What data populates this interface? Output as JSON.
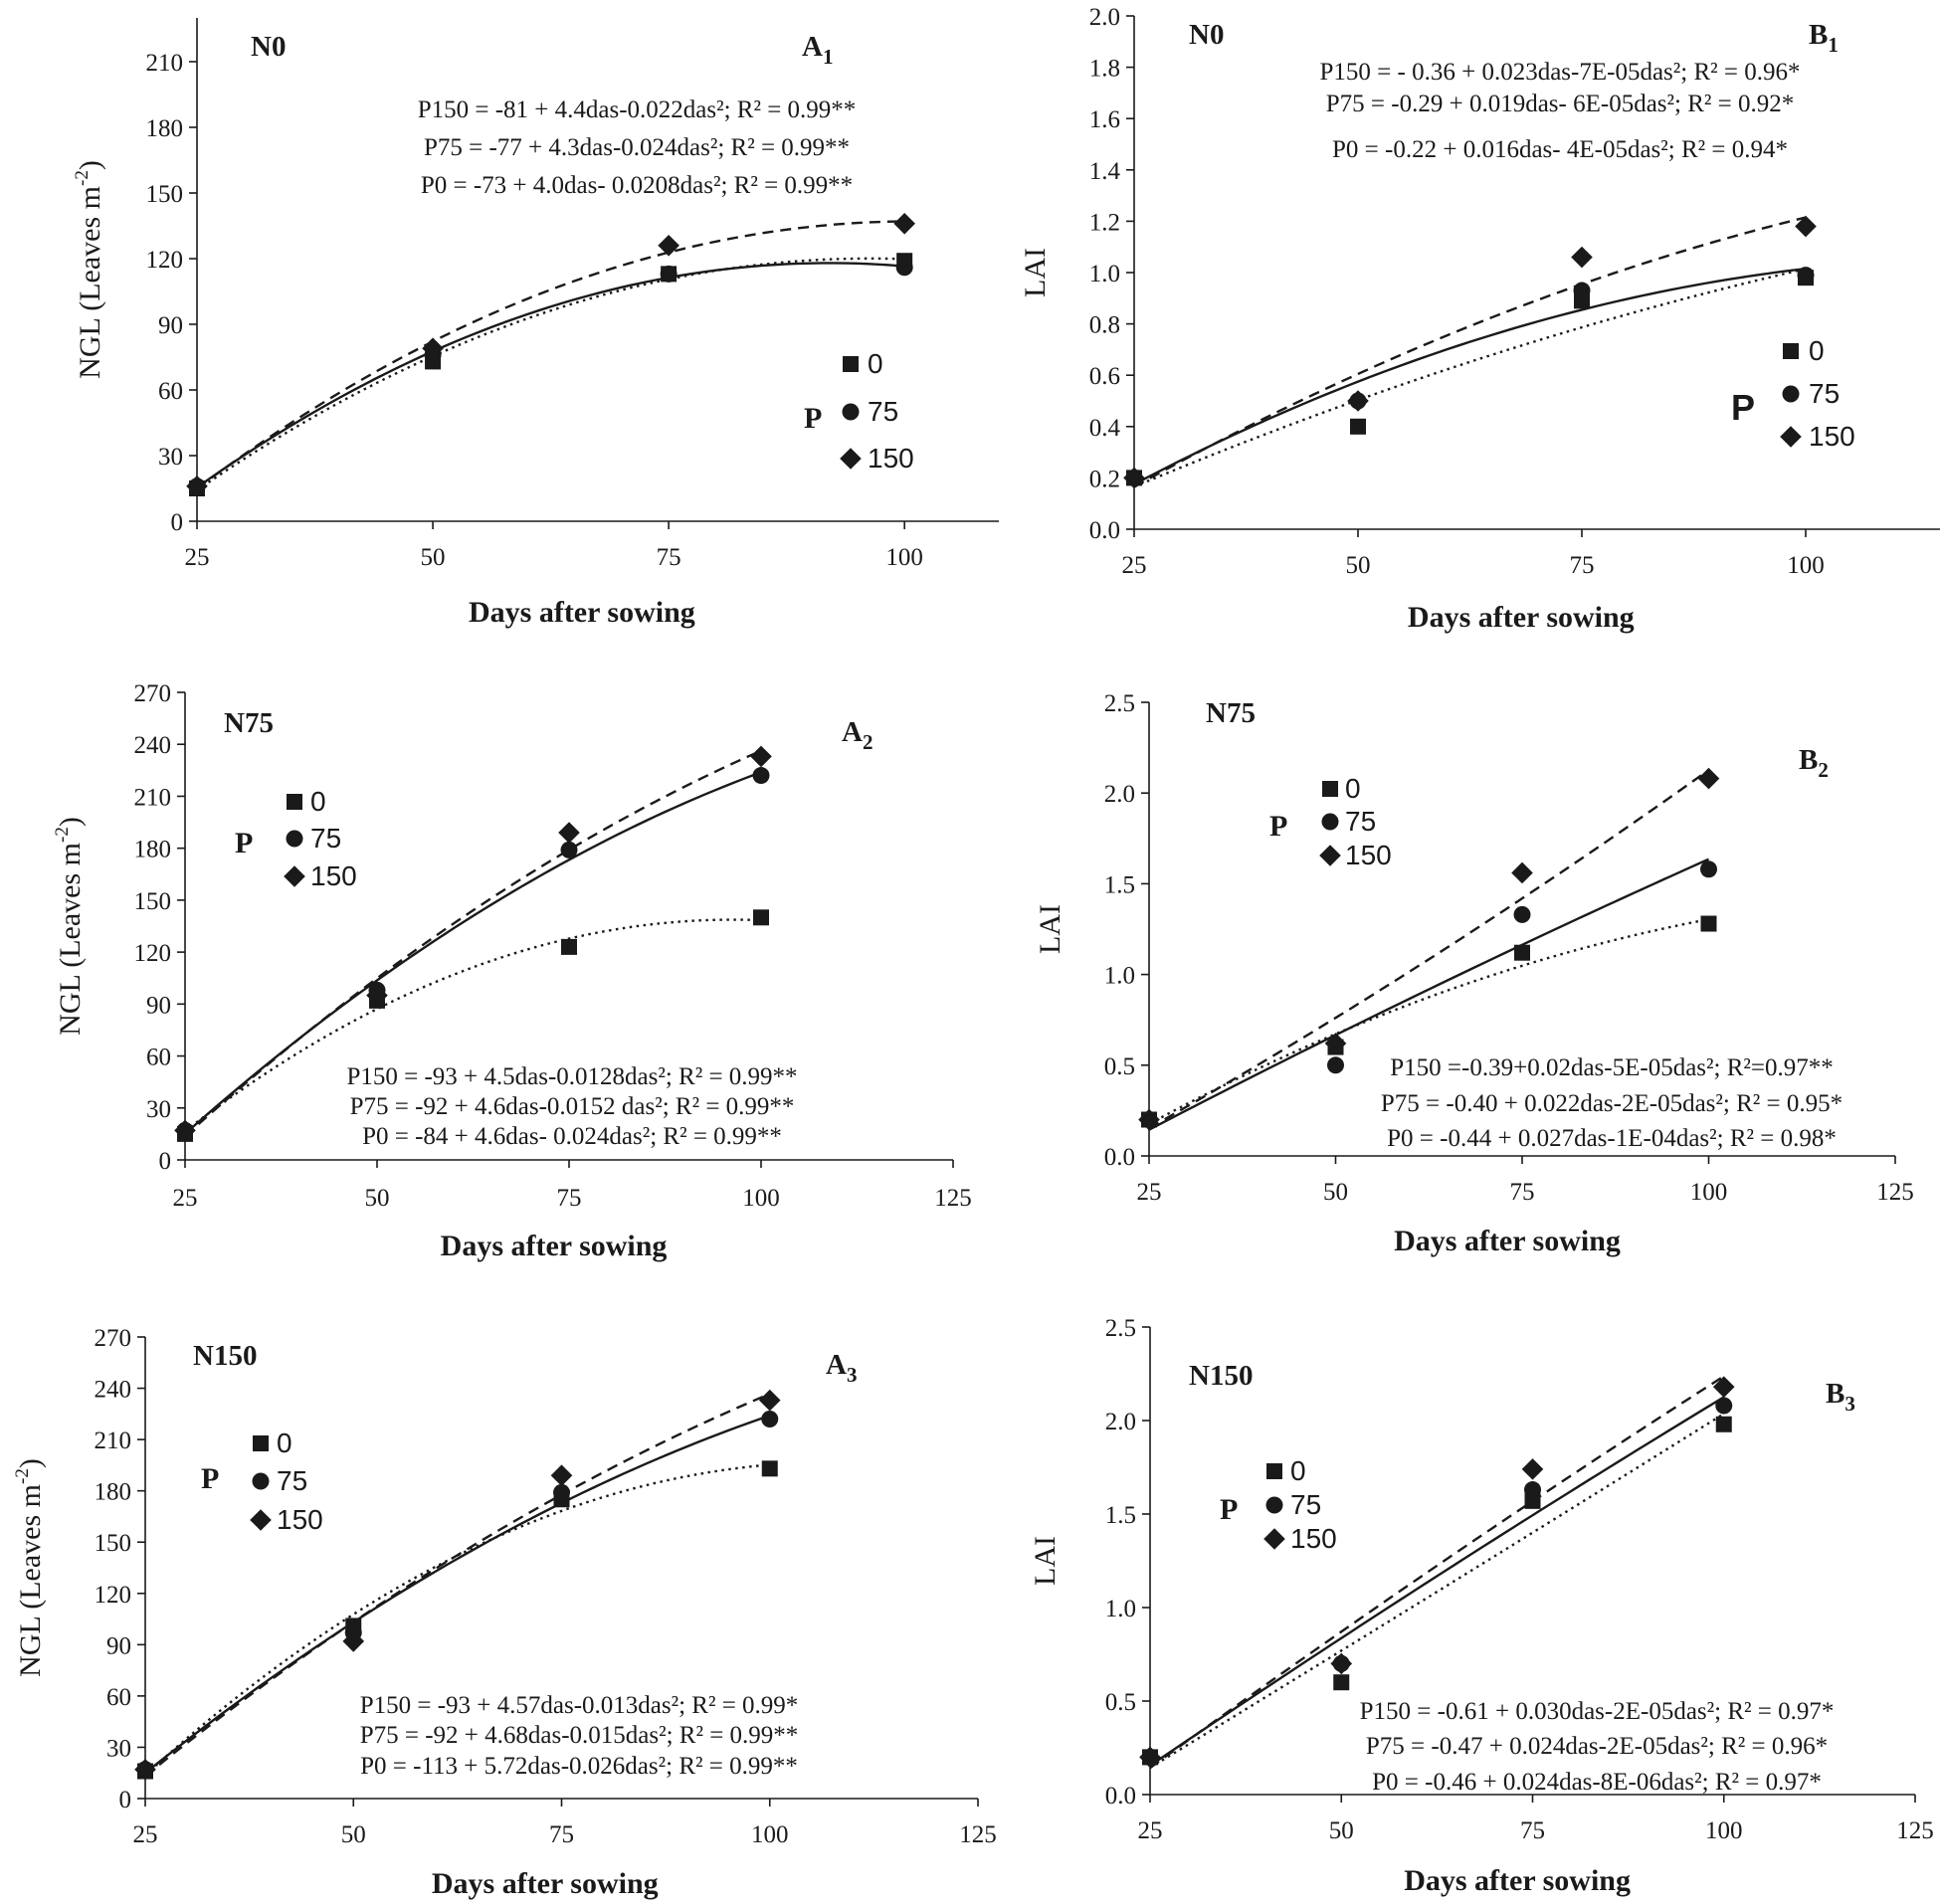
{
  "chart_data": [
    {
      "type": "scatter",
      "panel_label": "A",
      "panel_subscript": "1",
      "title": "N0",
      "xlabel": "Days after sowing",
      "ylabel": "NGL (Leaves m",
      "ylabel_sup": "-2",
      "ylabel_end": ")",
      "xlim": [
        25,
        110
      ],
      "ylim": [
        0,
        230
      ],
      "xticks": [
        25,
        50,
        75,
        100
      ],
      "yticks": [
        0,
        30,
        60,
        90,
        120,
        150,
        180,
        210
      ],
      "legend": {
        "title": "P",
        "placement": "right"
      },
      "equations": [
        {
          "label": "P150",
          "text": "P150 = -81 + 4.4das-0.022das²; R² = 0.99**"
        },
        {
          "label": "P75",
          "text": "P75 = -77 + 4.3das-0.024das²; R² = 0.99**"
        },
        {
          "label": "P0",
          "text": "P0 = -73 + 4.0das- 0.0208das²; R² = 0.99**"
        }
      ],
      "series": [
        {
          "name": "0",
          "marker": "square",
          "line": "dotted",
          "x": [
            25,
            50,
            75,
            100
          ],
          "y": [
            15,
            73,
            113,
            119
          ]
        },
        {
          "name": "75",
          "marker": "circle",
          "line": "solid",
          "x": [
            25,
            50,
            75,
            100
          ],
          "y": [
            16,
            76,
            113,
            116
          ]
        },
        {
          "name": "150",
          "marker": "diamond",
          "line": "dashed",
          "x": [
            25,
            50,
            75,
            100
          ],
          "y": [
            16,
            79,
            126,
            136
          ]
        }
      ]
    },
    {
      "type": "scatter",
      "panel_label": "B",
      "panel_subscript": "1",
      "title": "N0",
      "xlabel": "Days after sowing",
      "ylabel": "LAI",
      "xlim": [
        25,
        115
      ],
      "ylim": [
        0,
        2
      ],
      "xticks": [
        25,
        50,
        75,
        100
      ],
      "yticks": [
        0.0,
        0.2,
        0.4,
        0.6,
        0.8,
        1.0,
        1.2,
        1.4,
        1.6,
        1.8,
        2.0
      ],
      "ytick_labels": [
        "0.0",
        "0.2",
        "0.4",
        "0.6",
        "0.8",
        "1.0",
        "1.2",
        "1.4",
        "1.6",
        "1.8",
        "2.0"
      ],
      "legend": {
        "title": "P",
        "placement": "right"
      },
      "equations": [
        {
          "label": "P150",
          "text": "P150 = - 0.36 + 0.023das-7E-05das²; R² = 0.96*"
        },
        {
          "label": "P75",
          "text": "P75 = -0.29 + 0.019das- 6E-05das²; R² = 0.92*"
        },
        {
          "label": "P0",
          "text": "P0 = -0.22 + 0.016das- 4E-05das²; R² = 0.94*"
        }
      ],
      "series": [
        {
          "name": "0",
          "marker": "square",
          "line": "dotted",
          "x": [
            25,
            50,
            75,
            100
          ],
          "y": [
            0.2,
            0.4,
            0.89,
            0.98
          ]
        },
        {
          "name": "75",
          "marker": "circle",
          "line": "solid",
          "x": [
            25,
            50,
            75,
            100
          ],
          "y": [
            0.2,
            0.5,
            0.93,
            0.99
          ]
        },
        {
          "name": "150",
          "marker": "diamond",
          "line": "dashed",
          "x": [
            25,
            50,
            75,
            100
          ],
          "y": [
            0.2,
            0.5,
            1.06,
            1.18
          ]
        }
      ]
    },
    {
      "type": "scatter",
      "panel_label": "A",
      "panel_subscript": "2",
      "title": "N75",
      "xlabel": "Days after sowing",
      "ylabel": "NGL (Leaves m",
      "ylabel_sup": "-2",
      "ylabel_end": ")",
      "xlim": [
        25,
        125
      ],
      "ylim": [
        0,
        270
      ],
      "xticks": [
        25,
        50,
        75,
        100,
        125
      ],
      "yticks": [
        0,
        30,
        60,
        90,
        120,
        150,
        180,
        210,
        240,
        270
      ],
      "legend": {
        "title": "P",
        "placement": "top-left"
      },
      "equations": [
        {
          "label": "P150",
          "text": "P150 = -93 + 4.5das-0.0128das²; R² = 0.99**"
        },
        {
          "label": "P75",
          "text": "P75 =  -92 + 4.6das-0.0152 das²; R² = 0.99**"
        },
        {
          "label": "P0",
          "text": "P0 = -84 + 4.6das- 0.024das²; R² = 0.99**"
        }
      ],
      "series": [
        {
          "name": "0",
          "marker": "square",
          "line": "dotted",
          "x": [
            25,
            50,
            75,
            100
          ],
          "y": [
            15,
            92,
            123,
            140
          ]
        },
        {
          "name": "75",
          "marker": "circle",
          "line": "solid",
          "x": [
            25,
            50,
            75,
            100
          ],
          "y": [
            17,
            98,
            179,
            222
          ]
        },
        {
          "name": "150",
          "marker": "diamond",
          "line": "dashed",
          "x": [
            25,
            50,
            75,
            100
          ],
          "y": [
            17,
            95,
            189,
            233
          ]
        }
      ]
    },
    {
      "type": "scatter",
      "panel_label": "B",
      "panel_subscript": "2",
      "title": "N75",
      "xlabel": "Days after sowing",
      "ylabel": "LAI",
      "xlim": [
        25,
        125
      ],
      "ylim": [
        0,
        2.5
      ],
      "xticks": [
        25,
        50,
        75,
        100,
        125
      ],
      "yticks": [
        0.0,
        0.5,
        1.0,
        1.5,
        2.0,
        2.5
      ],
      "ytick_labels": [
        "0.0",
        "0.5",
        "1.0",
        "1.5",
        "2.0",
        "2.5"
      ],
      "legend": {
        "title": "P",
        "placement": "top-left"
      },
      "equations": [
        {
          "label": "P150",
          "text": "P150 =-0.39+0.02das-5E-05das²; R²=0.97**"
        },
        {
          "label": "P75",
          "text": "P75 = -0.40 + 0.022das-2E-05das²; R² = 0.95*"
        },
        {
          "label": "P0",
          "text": "P0 = -0.44 + 0.027das-1E-04das²; R² = 0.98*"
        }
      ],
      "series": [
        {
          "name": "0",
          "marker": "square",
          "line": "dotted",
          "x": [
            25,
            50,
            75,
            100
          ],
          "y": [
            0.2,
            0.6,
            1.12,
            1.28
          ]
        },
        {
          "name": "75",
          "marker": "circle",
          "line": "solid",
          "x": [
            25,
            50,
            75,
            100
          ],
          "y": [
            0.2,
            0.5,
            1.33,
            1.58
          ]
        },
        {
          "name": "150",
          "marker": "diamond",
          "line": "dashed",
          "x": [
            25,
            50,
            75,
            100
          ],
          "y": [
            0.2,
            0.62,
            1.56,
            2.08
          ]
        }
      ]
    },
    {
      "type": "scatter",
      "panel_label": "A",
      "panel_subscript": "3",
      "title": "N150",
      "xlabel": "Days after sowing",
      "ylabel": "NGL (Leaves m",
      "ylabel_sup": "-2",
      "ylabel_end": ")",
      "xlim": [
        25,
        125
      ],
      "ylim": [
        0,
        270
      ],
      "xticks": [
        25,
        50,
        75,
        100,
        125
      ],
      "yticks": [
        0,
        30,
        60,
        90,
        120,
        150,
        180,
        210,
        240,
        270
      ],
      "legend": {
        "title": "P",
        "placement": "top-left"
      },
      "equations": [
        {
          "label": "P150",
          "text": "P150 = -93 + 4.57das-0.013das²; R² = 0.99*"
        },
        {
          "label": "P75",
          "text": "P75 = -92 + 4.68das-0.015das²; R² = 0.99**"
        },
        {
          "label": "P0",
          "text": "P0 = -113 + 5.72das-0.026das²; R² = 0.99**"
        }
      ],
      "series": [
        {
          "name": "0",
          "marker": "square",
          "line": "dotted",
          "x": [
            25,
            50,
            75,
            100
          ],
          "y": [
            16,
            101,
            175,
            193
          ]
        },
        {
          "name": "75",
          "marker": "circle",
          "line": "solid",
          "x": [
            25,
            50,
            75,
            100
          ],
          "y": [
            17,
            97,
            179,
            222
          ]
        },
        {
          "name": "150",
          "marker": "diamond",
          "line": "dashed",
          "x": [
            25,
            50,
            75,
            100
          ],
          "y": [
            17,
            92,
            189,
            233
          ]
        }
      ]
    },
    {
      "type": "scatter",
      "panel_label": "B",
      "panel_subscript": "3",
      "title": "N150",
      "xlabel": "Days after sowing",
      "ylabel": "LAI",
      "xlim": [
        25,
        125
      ],
      "ylim": [
        0,
        2.5
      ],
      "xticks": [
        25,
        50,
        75,
        100,
        125
      ],
      "yticks": [
        0.0,
        0.5,
        1.0,
        1.5,
        2.0,
        2.5
      ],
      "ytick_labels": [
        "0.0",
        "0.5",
        "1.0",
        "1.5",
        "2.0",
        "2.5"
      ],
      "legend": {
        "title": "P",
        "placement": "top-left"
      },
      "equations": [
        {
          "label": "P150",
          "text": "P150 = -0.61 + 0.030das-2E-05das²; R² = 0.97*"
        },
        {
          "label": "P75",
          "text": "P75 = -0.47 + 0.024das-2E-05das²; R² = 0.96*"
        },
        {
          "label": "P0",
          "text": "P0 = -0.46 + 0.024das-8E-06das²; R² = 0.97*"
        }
      ],
      "series": [
        {
          "name": "0",
          "marker": "square",
          "line": "dotted",
          "x": [
            25,
            50,
            75,
            100
          ],
          "y": [
            0.2,
            0.6,
            1.57,
            1.98
          ]
        },
        {
          "name": "75",
          "marker": "circle",
          "line": "solid",
          "x": [
            25,
            50,
            75,
            100
          ],
          "y": [
            0.2,
            0.7,
            1.63,
            2.08
          ]
        },
        {
          "name": "150",
          "marker": "diamond",
          "line": "dashed",
          "x": [
            25,
            50,
            75,
            100
          ],
          "y": [
            0.2,
            0.7,
            1.74,
            2.18
          ]
        }
      ]
    }
  ]
}
